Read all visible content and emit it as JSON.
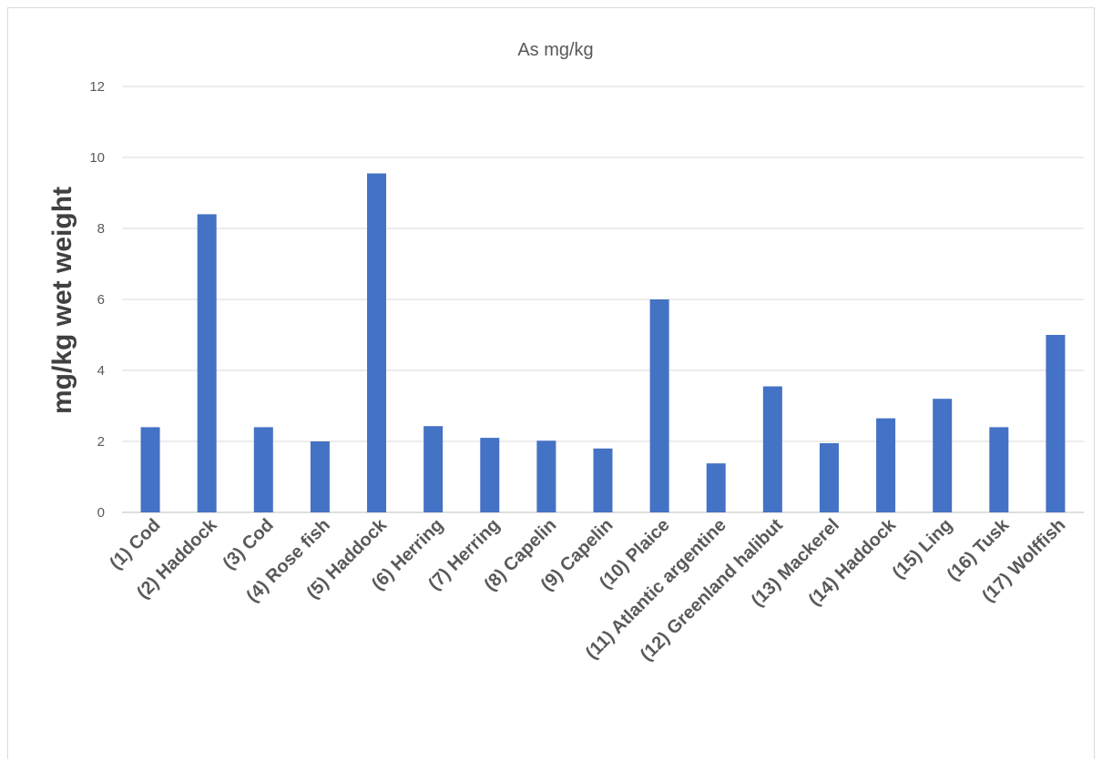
{
  "chart_data": {
    "type": "bar",
    "title": "As mg/kg",
    "xlabel": "",
    "ylabel": "mg/kg wet weight",
    "ylim": [
      0,
      12
    ],
    "yticks": [
      0,
      2,
      4,
      6,
      8,
      10,
      12
    ],
    "grid": true,
    "legend": "none",
    "bar_color": "#4472c4",
    "categories": [
      "(1) Cod",
      "(2) Haddock",
      "(3) Cod",
      "(4) Rose fish",
      "(5) Haddock",
      "(6) Herring",
      "(7) Herring",
      "(8) Capelin",
      "(9) Capelin",
      "(10) Plaice",
      "(11) Atlantic argentine",
      "(12) Greenland halibut",
      "(13) Mackerel",
      "(14) Haddock",
      "(15) Ling",
      "(16) Tusk",
      "(17) Wolffish"
    ],
    "values": [
      2.4,
      8.4,
      2.4,
      2.0,
      9.55,
      2.43,
      2.1,
      2.02,
      1.8,
      6.0,
      1.38,
      3.55,
      1.95,
      2.65,
      3.2,
      2.4,
      5.0
    ]
  }
}
